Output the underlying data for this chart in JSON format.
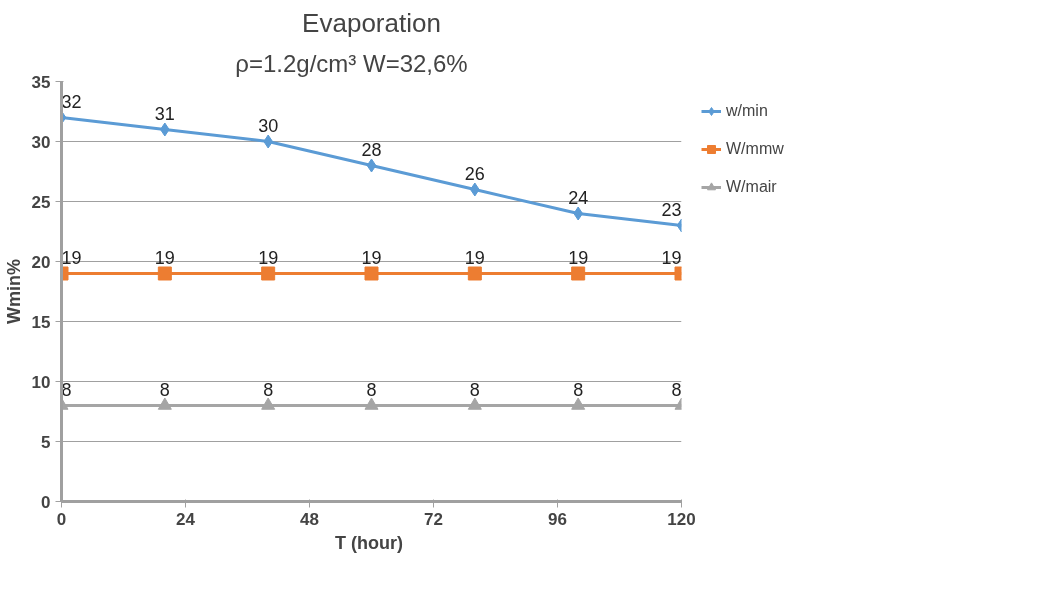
{
  "chart_data": {
    "type": "line",
    "title": "Evaporation",
    "subtitle": "ρ=1.2g/cm³       W=32,6%",
    "xlabel": "T  (hour)",
    "ylabel": "Wmin%",
    "x": [
      0,
      20,
      40,
      60,
      80,
      100,
      120
    ],
    "series": [
      {
        "name": "w/min",
        "color": "#5b9bd5",
        "marker": "diamond",
        "values": [
          32,
          31,
          30,
          28,
          26,
          24,
          23
        ]
      },
      {
        "name": "W/mmw",
        "color": "#ed7d31",
        "marker": "square",
        "values": [
          19,
          19,
          19,
          19,
          19,
          19,
          19
        ]
      },
      {
        "name": "W/mair",
        "color": "#a5a5a5",
        "marker": "triangle",
        "values": [
          8,
          8,
          8,
          8,
          8,
          8,
          8
        ]
      }
    ],
    "xlim": [
      0,
      120
    ],
    "xticks": [
      0,
      24,
      48,
      72,
      96,
      120
    ],
    "ylim": [
      0,
      35
    ],
    "yticks": [
      0,
      5,
      10,
      15,
      20,
      25,
      30,
      35
    ],
    "grid": "y",
    "legend": "right",
    "data_labels": true
  }
}
